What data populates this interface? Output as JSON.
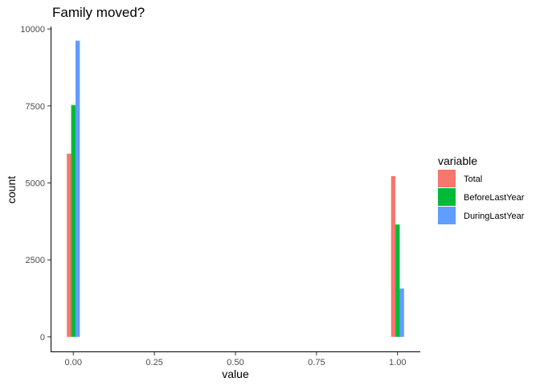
{
  "chart_data": {
    "type": "bar",
    "title": "Family moved?",
    "xlabel": "value",
    "ylabel": "count",
    "xlim": [
      -0.07,
      1.07
    ],
    "ylim": [
      -500,
      10080
    ],
    "x_ticks": [
      0,
      0.25,
      0.5,
      0.75,
      1
    ],
    "x_tick_labels": [
      "0.00",
      "0.25",
      "0.50",
      "0.75",
      "1.00"
    ],
    "y_ticks": [
      0,
      2500,
      5000,
      7500,
      10000
    ],
    "y_tick_labels": [
      "0",
      "2500",
      "5000",
      "7500",
      "10000"
    ],
    "categories": [
      "0.00",
      "1.00"
    ],
    "category_x": [
      0,
      1
    ],
    "bar_group_width": 0.04,
    "series": [
      {
        "name": "Total",
        "color": "#F8766D",
        "values": [
          5950,
          5220
        ]
      },
      {
        "name": "BeforeLastYear",
        "color": "#00BA38",
        "values": [
          7530,
          3650
        ]
      },
      {
        "name": "DuringLastYear",
        "color": "#619CFF",
        "values": [
          9620,
          1570
        ]
      }
    ],
    "legend": {
      "title": "variable",
      "position": "right"
    },
    "grid": false
  }
}
